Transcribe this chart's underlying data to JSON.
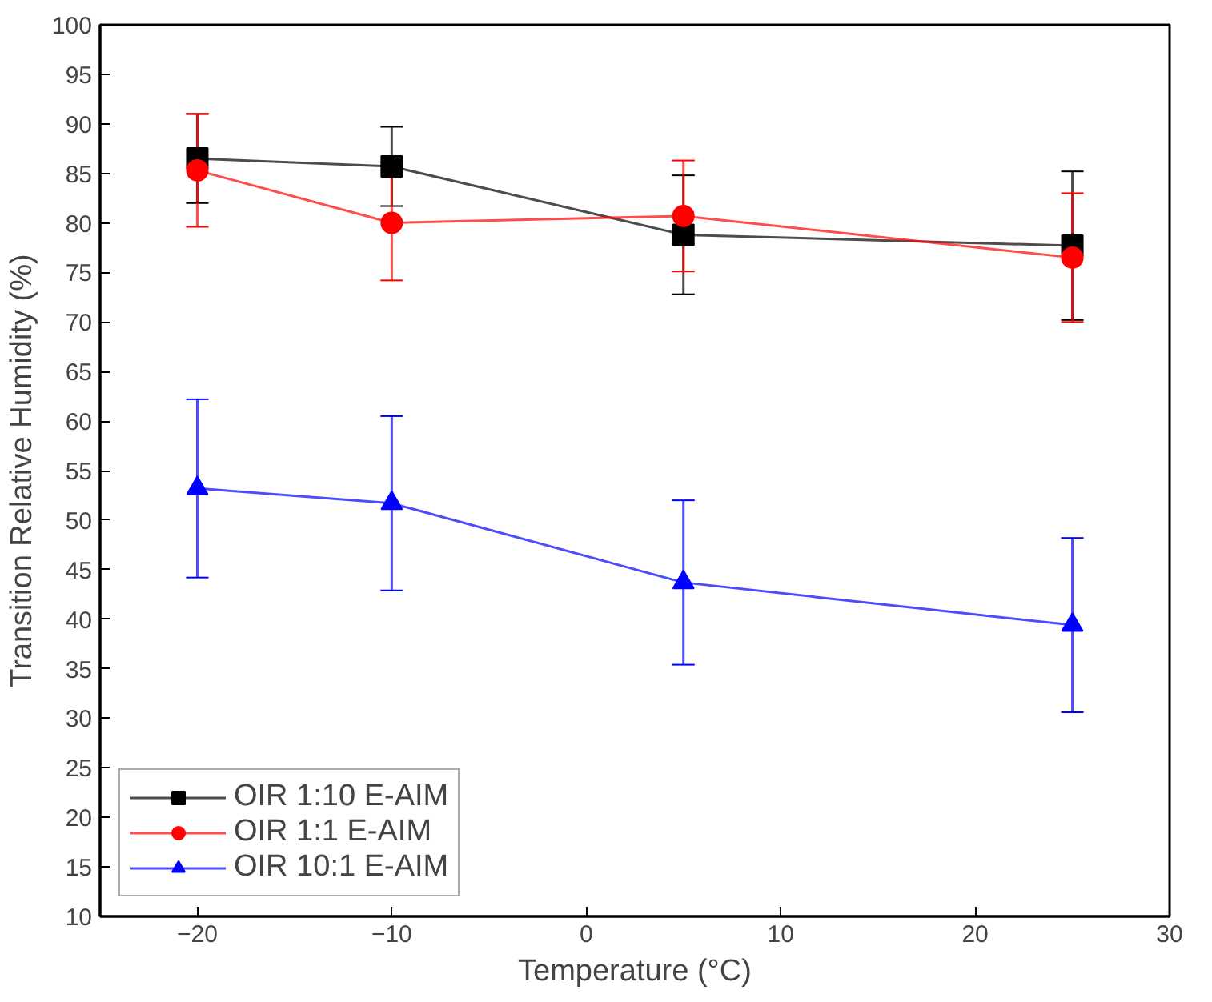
{
  "chart_data": {
    "type": "line",
    "xlabel": "Temperature (°C)",
    "ylabel": "Transition Relative Humidity (%)",
    "x": [
      -20,
      -10,
      5,
      25
    ],
    "series": [
      {
        "name": "OIR 1:10 E-AIM",
        "color": "#000000",
        "marker": "square",
        "values": [
          86.5,
          85.7,
          78.8,
          77.7
        ],
        "errors": [
          4.5,
          4,
          6,
          7.5
        ]
      },
      {
        "name": "OIR 1:1 E-AIM",
        "color": "#ff0000",
        "marker": "circle",
        "values": [
          85.3,
          80,
          80.7,
          76.5
        ],
        "errors": [
          5.7,
          5.8,
          5.6,
          6.5
        ]
      },
      {
        "name": "OIR 10:1 E-AIM",
        "color": "#0000ff",
        "marker": "triangle",
        "values": [
          53.2,
          51.7,
          43.7,
          39.4
        ],
        "errors": [
          9,
          8.8,
          8.3,
          8.8
        ]
      }
    ],
    "xlim": [
      -25,
      30
    ],
    "xticks": [
      -20,
      -10,
      0,
      10,
      20,
      30
    ],
    "ylim": [
      10,
      100
    ],
    "yticks": [
      10,
      15,
      20,
      25,
      30,
      35,
      40,
      45,
      50,
      55,
      60,
      65,
      70,
      75,
      80,
      85,
      90,
      95,
      100
    ],
    "grid": false,
    "legend": "bottom left",
    "line_style": "solid"
  }
}
